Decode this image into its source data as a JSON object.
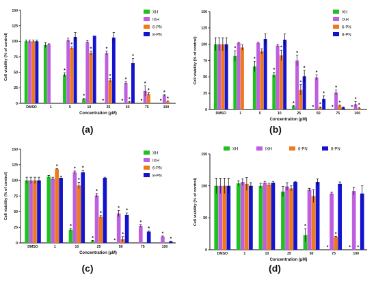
{
  "colors": {
    "XH": "#1fc11f",
    "IXH": "#bf5fe0",
    "6-PN": "#f07a1a",
    "8-PN": "#1414d0"
  },
  "chart_data": [
    {
      "type": "bar",
      "panel_label": "(a)",
      "ylabel": "Cell viability (% of control)",
      "xlabel": "Concentration (µM)",
      "ylim": [
        0,
        150
      ],
      "yticks": [
        "0",
        "25",
        "50",
        "75",
        "100",
        "125",
        "150"
      ],
      "legend_placement": "top-right",
      "legend_layout": "vertical",
      "categories": [
        "DMSO",
        "1",
        "5",
        "10",
        "25",
        "50",
        "75",
        "100"
      ],
      "series": [
        {
          "name": "XH",
          "values": [
            100,
            94,
            46,
            7,
            0,
            0,
            0,
            0
          ],
          "errors": [
            2,
            4,
            3,
            1,
            0,
            0,
            0,
            0
          ],
          "stars": [
            false,
            false,
            true,
            true,
            true,
            true,
            true,
            true
          ]
        },
        {
          "name": "IXH",
          "values": [
            100,
            95,
            102,
            99,
            81,
            33,
            20,
            13
          ],
          "errors": [
            2,
            1,
            3,
            2,
            3,
            2,
            8,
            1
          ],
          "stars": [
            false,
            false,
            false,
            false,
            true,
            true,
            true,
            true
          ]
        },
        {
          "name": "6-PN",
          "values": [
            100,
            null,
            89,
            81,
            37,
            2,
            15,
            3
          ],
          "errors": [
            2,
            0,
            2,
            3,
            3,
            1,
            2,
            1
          ],
          "stars": [
            false,
            false,
            true,
            true,
            true,
            true,
            true,
            true
          ]
        },
        {
          "name": "8-PN",
          "values": [
            100,
            null,
            107,
            109,
            106,
            65,
            0,
            0
          ],
          "errors": [
            2,
            0,
            7,
            0,
            8,
            7,
            0,
            0
          ],
          "stars": [
            false,
            false,
            false,
            false,
            false,
            true,
            false,
            false
          ]
        }
      ]
    },
    {
      "type": "bar",
      "panel_label": "(b)",
      "ylabel": "Cell viability (% of control)",
      "xlabel": "Concentration (µM)",
      "ylim": [
        0,
        150
      ],
      "yticks": [
        "0",
        "25",
        "50",
        "75",
        "100",
        "125",
        "150"
      ],
      "legend_placement": "top-right",
      "legend_layout": "vertical",
      "categories": [
        "DMSO",
        "1",
        "5",
        "10",
        "25",
        "50",
        "75",
        "100"
      ],
      "series": [
        {
          "name": "XH",
          "values": [
            100,
            82,
            66,
            53,
            5,
            0,
            0,
            0
          ],
          "errors": [
            10,
            8,
            8,
            4,
            1,
            0,
            0,
            0
          ],
          "stars": [
            false,
            true,
            true,
            true,
            true,
            true,
            true,
            true
          ]
        },
        {
          "name": "IXH",
          "values": [
            100,
            102,
            102,
            98,
            75,
            49,
            26,
            8
          ],
          "errors": [
            10,
            1,
            1,
            2,
            8,
            4,
            4,
            4
          ],
          "stars": [
            false,
            false,
            false,
            false,
            true,
            true,
            true,
            true
          ]
        },
        {
          "name": "6-PN",
          "values": [
            100,
            95,
            89,
            83,
            30,
            3,
            6,
            2
          ],
          "errors": [
            10,
            4,
            4,
            8,
            8,
            1,
            1,
            1
          ],
          "stars": [
            false,
            false,
            false,
            true,
            true,
            true,
            true,
            true
          ]
        },
        {
          "name": "8-PN",
          "values": [
            100,
            null,
            108,
            107,
            51,
            16,
            3,
            0
          ],
          "errors": [
            10,
            0,
            8,
            9,
            9,
            5,
            1,
            0
          ],
          "stars": [
            false,
            false,
            false,
            false,
            true,
            true,
            false,
            false
          ]
        }
      ]
    },
    {
      "type": "bar",
      "panel_label": "(c)",
      "ylabel": "Cell viability (% of control)",
      "xlabel": "Concentration (µM)",
      "ylim": [
        0,
        150
      ],
      "yticks": [
        "0",
        "25",
        "50",
        "75",
        "100",
        "125",
        "150"
      ],
      "legend_placement": "top-right",
      "legend_layout": "vertical",
      "categories": [
        "DMSO",
        "1",
        "10",
        "25",
        "50",
        "75",
        "100"
      ],
      "series": [
        {
          "name": "XH",
          "values": [
            100,
            106,
            21,
            3,
            0,
            0,
            0
          ],
          "errors": [
            5,
            2,
            2,
            1,
            0,
            0,
            0
          ],
          "stars": [
            false,
            false,
            true,
            true,
            true,
            false,
            false
          ]
        },
        {
          "name": "IXH",
          "values": [
            100,
            103,
            113,
            76,
            47,
            27,
            10
          ],
          "errors": [
            5,
            2,
            2,
            3,
            5,
            2,
            1
          ],
          "stars": [
            false,
            false,
            true,
            true,
            true,
            true,
            true
          ]
        },
        {
          "name": "6-PN",
          "values": [
            100,
            118,
            92,
            42,
            6,
            0,
            0
          ],
          "errors": [
            5,
            1,
            5,
            2,
            4,
            0,
            0
          ],
          "stars": [
            false,
            true,
            true,
            true,
            true,
            false,
            false
          ]
        },
        {
          "name": "8-PN",
          "values": [
            100,
            104,
            113,
            104,
            45,
            18,
            2
          ],
          "errors": [
            5,
            3,
            3,
            1,
            3,
            1,
            1
          ],
          "stars": [
            false,
            false,
            true,
            false,
            true,
            true,
            true
          ]
        }
      ]
    },
    {
      "type": "bar",
      "panel_label": "(d)",
      "ylabel": "Cell viability (% of control)",
      "xlabel": "Concentration (µM)",
      "ylim": [
        0,
        150
      ],
      "yticks": [
        "0",
        "50",
        "100",
        "150"
      ],
      "legend_placement": "top",
      "legend_layout": "horizontal",
      "categories": [
        "DMSO",
        "1",
        "10",
        "25",
        "50",
        "75",
        "100"
      ],
      "series": [
        {
          "name": "XH",
          "values": [
            100,
            104,
            100,
            91,
            23,
            0,
            0
          ],
          "errors": [
            12,
            4,
            4,
            8,
            10,
            0,
            0
          ],
          "stars": [
            false,
            false,
            false,
            false,
            true,
            true,
            true
          ]
        },
        {
          "name": "IXH",
          "values": [
            100,
            106,
            105,
            99,
            94,
            88,
            92
          ],
          "errors": [
            12,
            5,
            2,
            6,
            2,
            2,
            6
          ],
          "stars": [
            false,
            false,
            false,
            false,
            false,
            false,
            false
          ]
        },
        {
          "name": "6-PN",
          "values": [
            100,
            103,
            102,
            96,
            84,
            20,
            0
          ],
          "errors": [
            12,
            10,
            2,
            4,
            10,
            1,
            0
          ],
          "stars": [
            false,
            false,
            false,
            false,
            false,
            true,
            true
          ]
        },
        {
          "name": "8-PN",
          "values": [
            100,
            100,
            105,
            106,
            106,
            103,
            88
          ],
          "errors": [
            12,
            5,
            2,
            1,
            5,
            3,
            12
          ],
          "stars": [
            false,
            false,
            false,
            false,
            false,
            false,
            false
          ]
        }
      ]
    }
  ]
}
